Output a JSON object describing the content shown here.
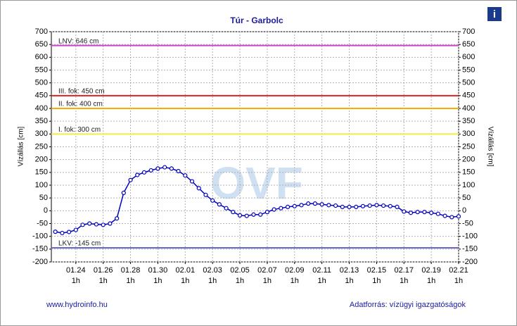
{
  "chart_data": {
    "type": "line",
    "title": "Túr - Garbolc",
    "ylabel": "Vízállás [cm]",
    "y2label": "Vízállás [cm]",
    "watermark": "OVF",
    "footer_left": "www.hydroinfo.hu",
    "footer_right": "Adatforrás: vízügyi igazgatóságok",
    "xlim": [
      "01.22 6h",
      "02.21 1h"
    ],
    "ylim": [
      -200,
      700
    ],
    "y2lim": [
      -200,
      700
    ],
    "yticks": [
      -200,
      -150,
      -100,
      -50,
      0,
      50,
      100,
      150,
      200,
      250,
      300,
      350,
      400,
      450,
      500,
      550,
      600,
      650,
      700
    ],
    "y2ticks": [
      -200,
      -150,
      -100,
      -50,
      0,
      50,
      100,
      150,
      200,
      250,
      300,
      350,
      400,
      450,
      500,
      550,
      600,
      650,
      700
    ],
    "xticks": [
      {
        "value": "01.24 1h",
        "label": [
          "01.24",
          "1h"
        ]
      },
      {
        "value": "01.26 1h",
        "label": [
          "01.26",
          "1h"
        ]
      },
      {
        "value": "01.28 1h",
        "label": [
          "01.28",
          "1h"
        ]
      },
      {
        "value": "01.30 1h",
        "label": [
          "01.30",
          "1h"
        ]
      },
      {
        "value": "02.01 1h",
        "label": [
          "02.01",
          "1h"
        ]
      },
      {
        "value": "02.03 1h",
        "label": [
          "02.03",
          "1h"
        ]
      },
      {
        "value": "02.05 1h",
        "label": [
          "02.05",
          "1h"
        ]
      },
      {
        "value": "02.07 1h",
        "label": [
          "02.07",
          "1h"
        ]
      },
      {
        "value": "02.09 1h",
        "label": [
          "02.09",
          "1h"
        ]
      },
      {
        "value": "02.11 1h",
        "label": [
          "02.11",
          "1h"
        ]
      },
      {
        "value": "02.13 1h",
        "label": [
          "02.13",
          "1h"
        ]
      },
      {
        "value": "02.15 1h",
        "label": [
          "02.15",
          "1h"
        ]
      },
      {
        "value": "02.17 1h",
        "label": [
          "02.17",
          "1h"
        ]
      },
      {
        "value": "02.19 1h",
        "label": [
          "02.19",
          "1h"
        ]
      },
      {
        "value": "02.21 1h",
        "label": [
          "02.21",
          "1h"
        ]
      }
    ],
    "grid": true,
    "levels": [
      {
        "label": "LNV: 646 cm",
        "value": 646,
        "color": "#cc44cc"
      },
      {
        "label": "III. fok: 450 cm",
        "value": 450,
        "color": "#dd2222"
      },
      {
        "label": "II. fok: 400 cm",
        "value": 400,
        "color": "#ffaa00"
      },
      {
        "label": "I. fok: 300 cm",
        "value": 300,
        "color": "#eeee44"
      },
      {
        "label": "LKV: -145 cm",
        "value": -145,
        "color": "#6666cc"
      }
    ],
    "x": [
      "01.22 13h",
      "01.23 1h",
      "01.23 13h",
      "01.24 1h",
      "01.24 13h",
      "01.25 1h",
      "01.25 13h",
      "01.26 1h",
      "01.26 13h",
      "01.27 1h",
      "01.27 13h",
      "01.28 1h",
      "01.28 13h",
      "01.29 1h",
      "01.29 13h",
      "01.30 1h",
      "01.30 13h",
      "01.31 1h",
      "01.31 13h",
      "02.01 1h",
      "02.01 13h",
      "02.02 1h",
      "02.02 13h",
      "02.03 1h",
      "02.03 13h",
      "02.04 1h",
      "02.04 13h",
      "02.05 1h",
      "02.05 13h",
      "02.06 1h",
      "02.06 13h",
      "02.07 1h",
      "02.07 13h",
      "02.08 1h",
      "02.08 13h",
      "02.09 1h",
      "02.09 13h",
      "02.10 1h",
      "02.10 13h",
      "02.11 1h",
      "02.11 13h",
      "02.12 1h",
      "02.12 13h",
      "02.13 1h",
      "02.13 13h",
      "02.14 1h",
      "02.14 13h",
      "02.15 1h",
      "02.15 13h",
      "02.16 1h",
      "02.16 13h",
      "02.17 1h",
      "02.17 13h",
      "02.18 1h",
      "02.18 13h",
      "02.19 1h",
      "02.19 13h",
      "02.20 1h",
      "02.20 13h",
      "02.21 1h"
    ],
    "series": [
      {
        "color": "#0000c0",
        "values": [
          -82,
          -87,
          -83,
          -75,
          -55,
          -50,
          -53,
          -55,
          -50,
          -30,
          70,
          120,
          140,
          150,
          158,
          165,
          170,
          165,
          155,
          138,
          115,
          88,
          62,
          40,
          25,
          10,
          -5,
          -18,
          -20,
          -15,
          -15,
          -5,
          5,
          10,
          15,
          18,
          22,
          28,
          28,
          25,
          22,
          20,
          15,
          15,
          15,
          18,
          20,
          22,
          20,
          18,
          15,
          -3,
          -8,
          -5,
          -5,
          -8,
          -12,
          -20,
          -25,
          -22
        ]
      }
    ]
  }
}
